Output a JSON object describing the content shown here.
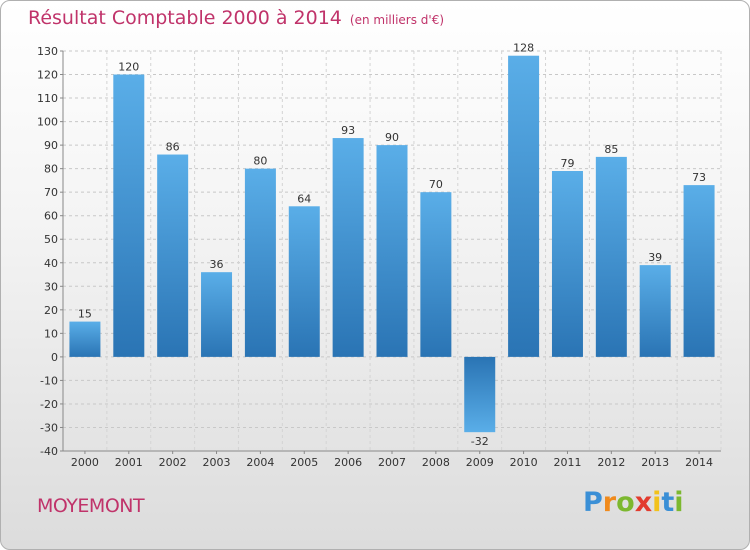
{
  "chart_data": {
    "type": "bar",
    "title": "Résultat Comptable 2000 à 2014",
    "unit_label": "(en milliers d'€)",
    "categories": [
      "2000",
      "2001",
      "2002",
      "2003",
      "2004",
      "2005",
      "2006",
      "2007",
      "2008",
      "2009",
      "2010",
      "2011",
      "2012",
      "2013",
      "2014"
    ],
    "values": [
      15,
      120,
      86,
      36,
      80,
      64,
      93,
      90,
      70,
      -32,
      128,
      79,
      85,
      39,
      73
    ],
    "ylim": [
      -40,
      130
    ],
    "yticks": [
      -40,
      -30,
      -20,
      -10,
      0,
      10,
      20,
      30,
      40,
      50,
      60,
      70,
      80,
      90,
      100,
      110,
      120,
      130
    ],
    "grid": true,
    "xlabel": "",
    "ylabel": ""
  },
  "commune": "MOYEMONT",
  "logo": {
    "letters": [
      "P",
      "r",
      "o",
      "x",
      "i",
      "t",
      "i"
    ],
    "colors": [
      "#3a8fd6",
      "#f08a1c",
      "#7cb82f",
      "#e23b2e",
      "#f2c21b",
      "#3a8fd6",
      "#7cb82f"
    ]
  },
  "colors": {
    "title": "#c0336a",
    "bar_light": "#5aaee8",
    "bar_dark": "#2a74b4"
  }
}
